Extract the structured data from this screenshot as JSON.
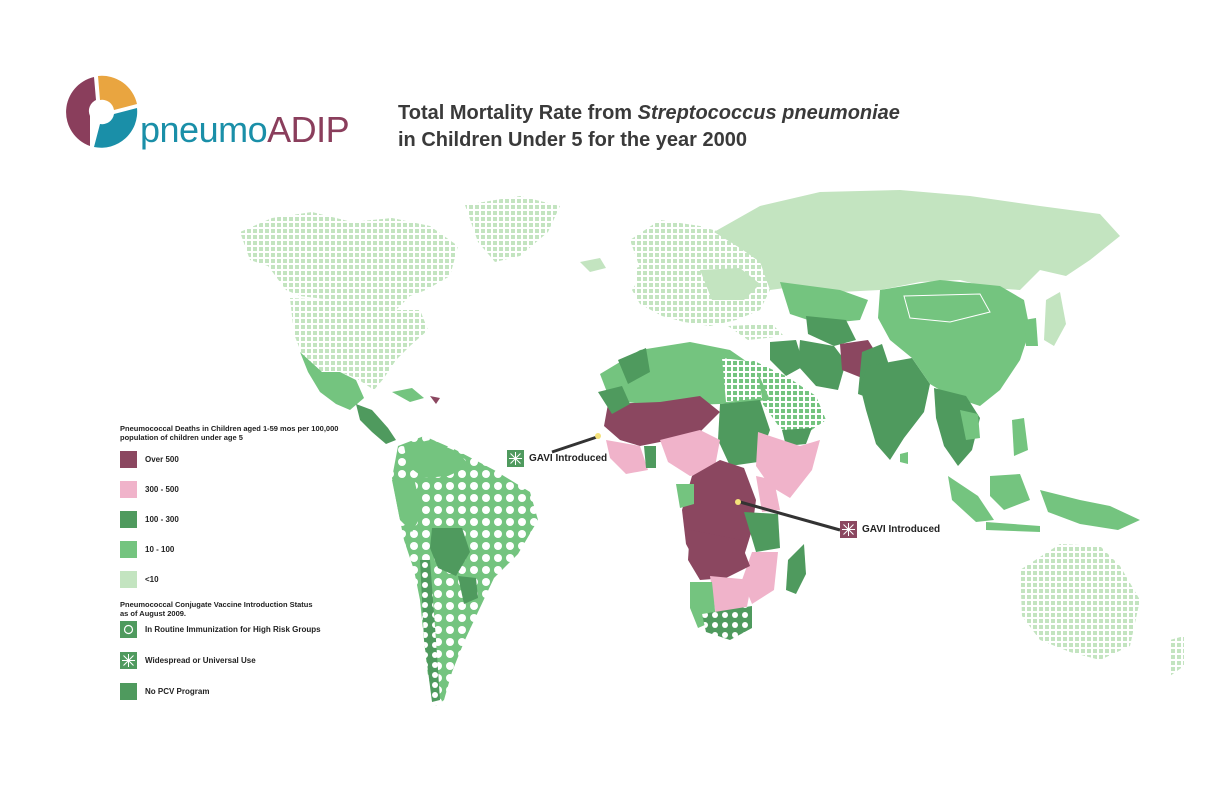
{
  "brand": {
    "part1": "pneumo",
    "part2": "ADIP"
  },
  "title": {
    "line1_prefix": "Total Mortality Rate from ",
    "line1_italic": "Streptococcus pneumoniae",
    "line2": "in Children Under 5 for the year 2000"
  },
  "colors": {
    "over_500": "#8b4760",
    "r300_500": "#f0b3ca",
    "r100_300": "#4f9a5e",
    "r10_100": "#74c47f",
    "under_10": "#c3e4c0",
    "logo_orange": "#e9a540",
    "logo_teal": "#1a8fa8",
    "logo_plum": "#8a3e5c"
  },
  "legend": {
    "mortality_title": "Pneumococcal Deaths in Children aged 1-59 mos per 100,000 population of children under age 5",
    "mortality_items": [
      {
        "label": "Over 500",
        "color": "#8b4760"
      },
      {
        "label": "300 - 500",
        "color": "#f0b3ca"
      },
      {
        "label": "100 - 300",
        "color": "#4f9a5e"
      },
      {
        "label": "10 - 100",
        "color": "#74c47f"
      },
      {
        "label": "<10",
        "color": "#c3e4c0"
      }
    ],
    "vaccine_title": "Pneumococcal Conjugate Vaccine Introduction Status as of August 2009.",
    "vaccine_items": [
      {
        "label": "In Routine Immunization for High Risk Groups",
        "pattern": "circle"
      },
      {
        "label": "Widespread or Universal Use",
        "pattern": "star"
      },
      {
        "label": "No PCV Program",
        "pattern": "solid"
      }
    ]
  },
  "callouts": {
    "gavi_west": "GAVI Introduced",
    "gavi_east": "GAVI Introduced"
  }
}
